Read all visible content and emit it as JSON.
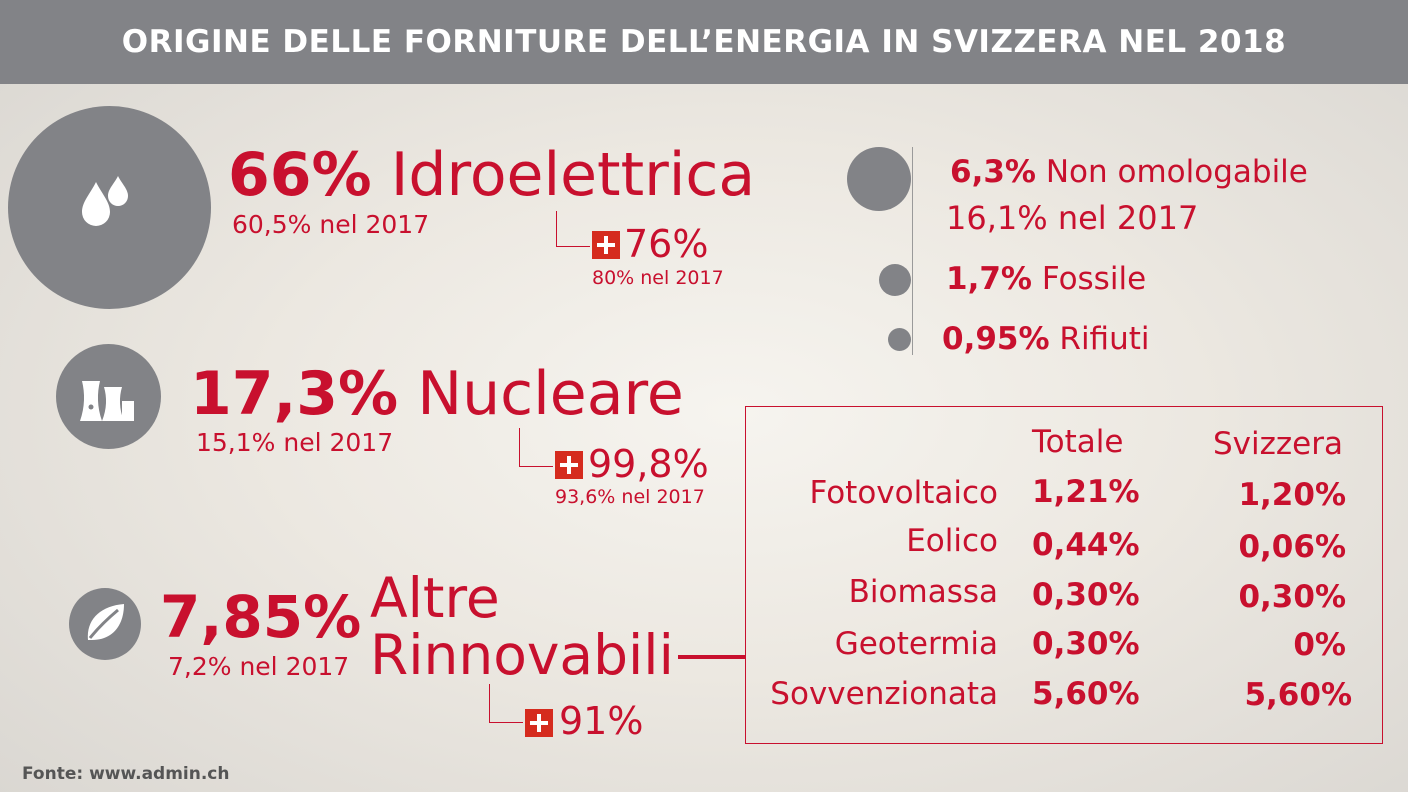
{
  "title": "ORIGINE DELLE FORNITURE DELL’ENERGIA IN SVIZZERA NEL 2018",
  "hydro": {
    "pct": "66%",
    "name": "Idroelettrica",
    "prev": "60,5% nel 2017",
    "swiss_pct": "76%",
    "swiss_prev": "80% nel 2017",
    "icon": "water-drops-icon"
  },
  "nuclear": {
    "pct": "17,3%",
    "name": "Nucleare",
    "prev": "15,1% nel 2017",
    "swiss_pct": "99,8%",
    "swiss_prev": "93,6% nel 2017",
    "icon": "nuclear-plant-icon"
  },
  "renewables": {
    "pct": "7,85%",
    "name_line1": "Altre",
    "name_line2": "Rinnovabili",
    "prev": "7,2% nel 2017",
    "swiss_pct": "91%",
    "icon": "leaf-icon"
  },
  "minor": [
    {
      "pct": "6,3%",
      "name": "Non omologabile",
      "prev": "16,1% nel 2017"
    },
    {
      "pct": "1,7%",
      "name": "Fossile"
    },
    {
      "pct": "0,95%",
      "name": "Rifiuti"
    }
  ],
  "table": {
    "headers": [
      "Totale",
      "Svizzera"
    ],
    "rows": [
      {
        "label": "Fotovoltaico",
        "totale": "1,21%",
        "svizzera": "1,20%"
      },
      {
        "label": "Eolico",
        "totale": "0,44%",
        "svizzera": "0,06%"
      },
      {
        "label": "Biomassa",
        "totale": "0,30%",
        "svizzera": "0,30%"
      },
      {
        "label": "Geotermia",
        "totale": "0,30%",
        "svizzera": "0%"
      },
      {
        "label": "Sovvenzionata",
        "totale": "5,60%",
        "svizzera": "5,60%"
      }
    ]
  },
  "source": "Fonte: www.admin.ch",
  "colors": {
    "accent": "#c8102e",
    "header": "#828387",
    "circle": "#828387",
    "swiss_flag": "#d52b1e"
  }
}
